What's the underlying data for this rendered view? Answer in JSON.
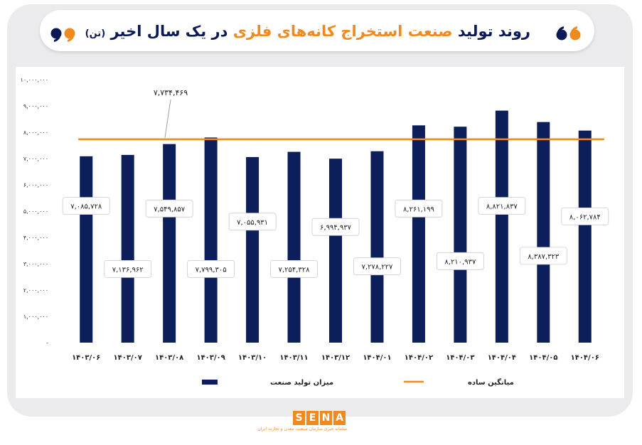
{
  "header": {
    "title_part1": "روند تولید",
    "title_highlight": "صنعت استخراج کانه‌های فلزی",
    "title_part2": "در یک سال اخیر",
    "title_unit": "(تن)"
  },
  "logo": {
    "letters": [
      "S",
      "E",
      "N",
      "A"
    ],
    "tagline": "سامانه خبری سازمان صنعت، معدن و تجارت ایران"
  },
  "colors": {
    "bar": "#0d1f5b",
    "average_line": "#f0891e",
    "title_dark": "#0b1a57",
    "title_highlight": "#f0891e"
  },
  "chart_data": {
    "type": "bar",
    "categories": [
      "۱۴۰۳/۰۶",
      "۱۴۰۳/۰۷",
      "۱۴۰۳/۰۸",
      "۱۴۰۳/۰۹",
      "۱۴۰۳/۱۰",
      "۱۴۰۳/۱۱",
      "۱۴۰۳/۱۲",
      "۱۴۰۴/۰۱",
      "۱۴۰۴/۰۲",
      "۱۴۰۴/۰۳",
      "۱۴۰۴/۰۴",
      "۱۴۰۴/۰۵",
      "۱۴۰۴/۰۶"
    ],
    "series": [
      {
        "name": "میزان تولید صنعت",
        "values": [
          7085728,
          7136962,
          7549857,
          7799305,
          7055931,
          7254328,
          6994937,
          7278227,
          8261199,
          8210937,
          8821837,
          8387323,
          8062784
        ],
        "labels": [
          "۷,۰۸۵,۷۲۸",
          "۷,۱۳۶,۹۶۲",
          "۷,۵۴۹,۸۵۷",
          "۷,۷۹۹,۳۰۵",
          "۷,۰۵۵,۹۳۱",
          "۷,۲۵۴,۳۲۸",
          "۶,۹۹۴,۹۳۷",
          "۷,۲۷۸,۲۲۷",
          "۸,۲۶۱,۱۹۹",
          "۸,۲۱۰,۹۳۷",
          "۸,۸۲۱,۸۳۷",
          "۸,۳۸۷,۳۲۳",
          "۸,۰۶۲,۷۸۴"
        ],
        "label_values": [
          5200000,
          2800000,
          5100000,
          2800000,
          4600000,
          2800000,
          4400000,
          2900000,
          5100000,
          3100000,
          5200000,
          3300000,
          4800000
        ]
      }
    ],
    "average": {
      "name": "میانگین ساده",
      "value": 7734469,
      "label": "۷,۷۳۴,۴۶۹"
    },
    "ylim": [
      0,
      10000000
    ],
    "y_ticks": [
      0,
      1000000,
      2000000,
      3000000,
      4000000,
      5000000,
      6000000,
      7000000,
      8000000,
      9000000,
      10000000
    ],
    "y_tick_labels": [
      "-",
      "۱,۰۰۰,۰۰۰",
      "۲,۰۰۰,۰۰۰",
      "۳,۰۰۰,۰۰۰",
      "۴,۰۰۰,۰۰۰",
      "۵,۰۰۰,۰۰۰",
      "۶,۰۰۰,۰۰۰",
      "۷,۰۰۰,۰۰۰",
      "۸,۰۰۰,۰۰۰",
      "۹,۰۰۰,۰۰۰",
      "۱۰,۰۰۰,۰۰۰"
    ],
    "grid": false,
    "legend_position": "bottom"
  }
}
